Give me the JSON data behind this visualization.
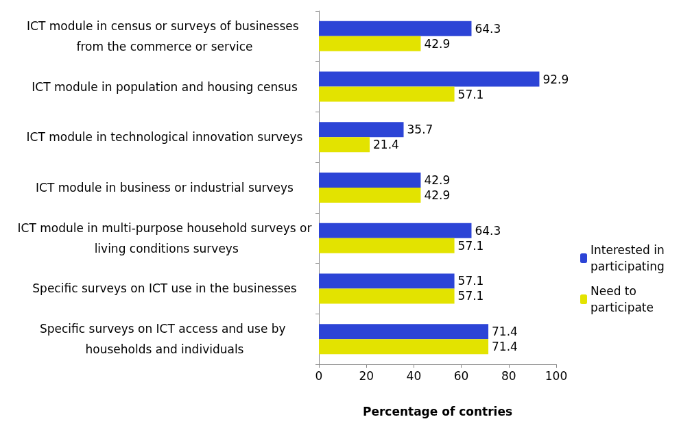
{
  "chart_data": {
    "type": "bar",
    "orientation": "horizontal",
    "xlabel": "Percentage of contries",
    "categories": [
      "ICT module in census or surveys of businesses from the commerce or service",
      "ICT module in population and housing census",
      "ICT module in technological innovation surveys",
      "ICT module in business or industrial surveys",
      "ICT module in multi-purpose household surveys or living conditions surveys",
      "Specific surveys on ICT use in the businesses",
      "Specific surveys on ICT access and use by households and individuals"
    ],
    "series": [
      {
        "name": "Interested in participating",
        "color": "#2c44d6",
        "values": [
          64.3,
          92.9,
          35.7,
          42.9,
          64.3,
          57.1,
          71.4
        ]
      },
      {
        "name": "Need to participate",
        "color": "#e3e300",
        "values": [
          42.9,
          57.1,
          21.4,
          42.9,
          57.1,
          57.1,
          71.4
        ]
      }
    ],
    "xlim": [
      0,
      100
    ],
    "xticks": [
      0,
      20,
      40,
      60,
      80,
      100
    ],
    "grid": false,
    "legend": "right",
    "data_labels": true
  }
}
